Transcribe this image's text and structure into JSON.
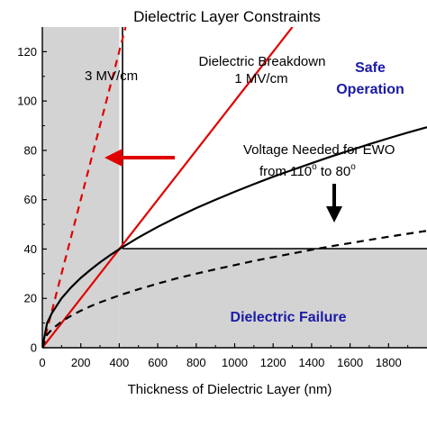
{
  "chart_data": {
    "type": "line",
    "title": "Dielectric Layer Constraints",
    "xlabel": "Thickness of Dielectric Layer (nm)",
    "ylabel": "",
    "xlim": [
      0,
      2000
    ],
    "ylim": [
      0,
      130
    ],
    "x_ticks": [
      0,
      200,
      400,
      600,
      800,
      1000,
      1200,
      1400,
      1600,
      1800
    ],
    "y_ticks": [
      0,
      20,
      40,
      60,
      80,
      100,
      120
    ],
    "grid": false,
    "regions": [
      {
        "name": "left-forbidden",
        "x": [
          0,
          400
        ],
        "y": [
          0,
          130
        ],
        "color": "#d3d3d3"
      },
      {
        "name": "bottom-forbidden",
        "x": [
          400,
          2000
        ],
        "y": [
          0,
          40
        ],
        "color": "#d3d3d3"
      }
    ],
    "series": [
      {
        "id": "breakdown-1mv",
        "style": "solid",
        "color": "#e00000",
        "x": [
          0,
          1300
        ],
        "y": [
          0,
          130
        ]
      },
      {
        "id": "breakdown-3mv",
        "style": "dashed",
        "color": "#e00000",
        "x": [
          0,
          433
        ],
        "y": [
          0,
          130
        ]
      },
      {
        "id": "voltage-110-80",
        "style": "solid",
        "color": "#000000",
        "x": [
          0,
          25,
          50,
          100,
          150,
          200,
          250,
          300,
          350,
          400,
          500,
          600,
          700,
          800,
          900,
          1000,
          1100,
          1200,
          1300,
          1400,
          1500,
          1600,
          1700,
          1800,
          1900,
          2000
        ],
        "y": [
          0,
          10,
          14.1,
          20,
          24.5,
          28.3,
          31.6,
          34.6,
          37.4,
          40,
          44.7,
          49,
          52.9,
          56.6,
          60,
          63.2,
          66.3,
          69.3,
          72.1,
          74.8,
          77.5,
          80,
          82.5,
          84.9,
          87.2,
          89.4
        ]
      },
      {
        "id": "voltage-dashed",
        "style": "dashed",
        "color": "#000000",
        "x": [
          0,
          25,
          50,
          100,
          150,
          200,
          250,
          300,
          350,
          400,
          500,
          600,
          700,
          800,
          900,
          1000,
          1100,
          1200,
          1300,
          1400,
          1500,
          1600,
          1700,
          1800,
          1900,
          2000
        ],
        "y": [
          0,
          5.3,
          7.5,
          10.6,
          13,
          15,
          16.8,
          18.4,
          19.8,
          21.2,
          23.7,
          26,
          28.1,
          30,
          31.8,
          33.5,
          35.2,
          36.7,
          38.2,
          39.7,
          41.1,
          42.4,
          43.7,
          45,
          46.2,
          47.4
        ]
      }
    ],
    "annotations": {
      "breakdown_3mv": "3 MV/cm",
      "breakdown_1mv_line1": "Dielectric Breakdown",
      "breakdown_1mv_line2": "1 MV/cm",
      "safe_line1": "Safe",
      "safe_line2": "Operation",
      "failure": "Dielectric Failure",
      "voltage_line1": "Voltage Needed for EWO",
      "voltage_line2_a": "from 110",
      "voltage_line2_sup1": "o",
      "voltage_line2_b": " to 80",
      "voltage_line2_sup2": "o"
    },
    "colors": {
      "highlight_text": "#1a1aa6",
      "red": "#e00000",
      "region": "#d3d3d3"
    }
  }
}
